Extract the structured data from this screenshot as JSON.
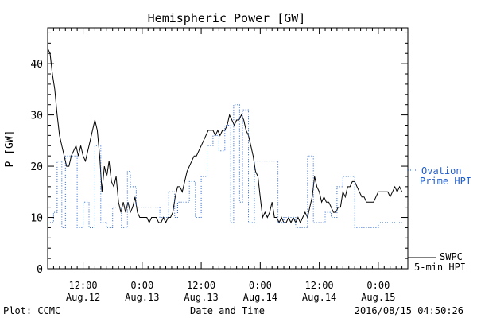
{
  "chart_data": {
    "type": "line",
    "title": "Hemispheric Power [GW]",
    "ylabel": "P [GW]",
    "xlabel": "Date and Time",
    "ylim": [
      0,
      47
    ],
    "xlim": [
      0,
      61
    ],
    "yticks": [
      0,
      10,
      20,
      30,
      40
    ],
    "xticks": [
      {
        "x": 6,
        "time": "12:00",
        "date": "Aug.12"
      },
      {
        "x": 16,
        "time": "0:00",
        "date": "Aug.13"
      },
      {
        "x": 26,
        "time": "12:00",
        "date": "Aug.13"
      },
      {
        "x": 36,
        "time": "0:00",
        "date": "Aug.14"
      },
      {
        "x": 46,
        "time": "12:00",
        "date": "Aug.14"
      },
      {
        "x": 56,
        "time": "0:00",
        "date": "Aug.15"
      }
    ],
    "grid": false,
    "series": [
      {
        "name": "SWPC 5-min HPI",
        "color": "#000000",
        "style": "solid",
        "points": [
          [
            0,
            43
          ],
          [
            0.4,
            42
          ],
          [
            0.8,
            38
          ],
          [
            1.2,
            35
          ],
          [
            1.6,
            30
          ],
          [
            2,
            26
          ],
          [
            2.4,
            24
          ],
          [
            2.8,
            22
          ],
          [
            3.2,
            20
          ],
          [
            3.6,
            20
          ],
          [
            4,
            22
          ],
          [
            4.4,
            23
          ],
          [
            4.8,
            24
          ],
          [
            5.2,
            22
          ],
          [
            5.6,
            24
          ],
          [
            6,
            22
          ],
          [
            6.4,
            21
          ],
          [
            6.8,
            23
          ],
          [
            7.2,
            25
          ],
          [
            7.6,
            27
          ],
          [
            8,
            29
          ],
          [
            8.4,
            27
          ],
          [
            8.8,
            22
          ],
          [
            9.2,
            15
          ],
          [
            9.6,
            20
          ],
          [
            10,
            18
          ],
          [
            10.4,
            21
          ],
          [
            10.8,
            17
          ],
          [
            11.2,
            16
          ],
          [
            11.6,
            18
          ],
          [
            12,
            13
          ],
          [
            12.4,
            11
          ],
          [
            12.8,
            13
          ],
          [
            13.2,
            11
          ],
          [
            13.6,
            13
          ],
          [
            14,
            11
          ],
          [
            14.4,
            12
          ],
          [
            14.8,
            14
          ],
          [
            15.2,
            11
          ],
          [
            15.6,
            10
          ],
          [
            16,
            10
          ],
          [
            16.4,
            10
          ],
          [
            16.8,
            10
          ],
          [
            17.2,
            9
          ],
          [
            17.6,
            10
          ],
          [
            18,
            10
          ],
          [
            18.4,
            10
          ],
          [
            18.8,
            9
          ],
          [
            19.2,
            9
          ],
          [
            19.6,
            10
          ],
          [
            20,
            9
          ],
          [
            20.4,
            10
          ],
          [
            20.8,
            10
          ],
          [
            21.2,
            11
          ],
          [
            21.6,
            14
          ],
          [
            22,
            16
          ],
          [
            22.4,
            16
          ],
          [
            22.8,
            15
          ],
          [
            23.2,
            17
          ],
          [
            23.6,
            19
          ],
          [
            24,
            20
          ],
          [
            24.4,
            21
          ],
          [
            24.8,
            22
          ],
          [
            25.2,
            22
          ],
          [
            25.6,
            23
          ],
          [
            26,
            24
          ],
          [
            26.4,
            25
          ],
          [
            26.8,
            26
          ],
          [
            27.2,
            27
          ],
          [
            27.6,
            27
          ],
          [
            28,
            27
          ],
          [
            28.4,
            26
          ],
          [
            28.8,
            27
          ],
          [
            29.2,
            26
          ],
          [
            29.6,
            27
          ],
          [
            30,
            27
          ],
          [
            30.4,
            28
          ],
          [
            30.8,
            30
          ],
          [
            31.2,
            29
          ],
          [
            31.6,
            28
          ],
          [
            32,
            29
          ],
          [
            32.4,
            29
          ],
          [
            32.8,
            30
          ],
          [
            33.2,
            29
          ],
          [
            33.6,
            27
          ],
          [
            34,
            26
          ],
          [
            34.4,
            24
          ],
          [
            34.8,
            22
          ],
          [
            35.2,
            19
          ],
          [
            35.6,
            18
          ],
          [
            36,
            14
          ],
          [
            36.4,
            10
          ],
          [
            36.8,
            11
          ],
          [
            37.2,
            10
          ],
          [
            37.6,
            11
          ],
          [
            38,
            13
          ],
          [
            38.4,
            10
          ],
          [
            38.8,
            10
          ],
          [
            39.2,
            9
          ],
          [
            39.6,
            10
          ],
          [
            40,
            9
          ],
          [
            40.4,
            9
          ],
          [
            40.8,
            10
          ],
          [
            41.2,
            9
          ],
          [
            41.6,
            10
          ],
          [
            42,
            9
          ],
          [
            42.4,
            10
          ],
          [
            42.8,
            9
          ],
          [
            43.2,
            10
          ],
          [
            43.6,
            11
          ],
          [
            44,
            10
          ],
          [
            44.4,
            12
          ],
          [
            44.8,
            14
          ],
          [
            45.2,
            18
          ],
          [
            45.6,
            16
          ],
          [
            46,
            15
          ],
          [
            46.4,
            13
          ],
          [
            46.8,
            14
          ],
          [
            47.2,
            13
          ],
          [
            47.6,
            13
          ],
          [
            48,
            12
          ],
          [
            48.4,
            11
          ],
          [
            48.8,
            11
          ],
          [
            49.2,
            12
          ],
          [
            49.6,
            12
          ],
          [
            50,
            15
          ],
          [
            50.4,
            14
          ],
          [
            50.8,
            16
          ],
          [
            51.2,
            16
          ],
          [
            51.6,
            17
          ],
          [
            52,
            17
          ],
          [
            52.4,
            16
          ],
          [
            52.8,
            15
          ],
          [
            53.2,
            14
          ],
          [
            53.6,
            14
          ],
          [
            54,
            13
          ],
          [
            54.4,
            13
          ],
          [
            54.8,
            13
          ],
          [
            55.2,
            13
          ],
          [
            55.6,
            14
          ],
          [
            56,
            15
          ],
          [
            56.4,
            15
          ],
          [
            56.8,
            15
          ],
          [
            57.2,
            15
          ],
          [
            57.6,
            15
          ],
          [
            58,
            14
          ],
          [
            58.4,
            15
          ],
          [
            58.8,
            16
          ],
          [
            59.2,
            15
          ],
          [
            59.6,
            16
          ],
          [
            60,
            15
          ]
        ]
      },
      {
        "name": "Ovation Prime HPI",
        "color": "#1f5fd0",
        "style": "dotted",
        "points": [
          [
            0,
            9
          ],
          [
            1,
            9
          ],
          [
            1,
            11
          ],
          [
            1.6,
            11
          ],
          [
            1.6,
            21
          ],
          [
            2.4,
            21
          ],
          [
            2.4,
            8
          ],
          [
            3,
            8
          ],
          [
            3,
            22
          ],
          [
            5,
            22
          ],
          [
            5,
            8
          ],
          [
            6,
            8
          ],
          [
            6,
            13
          ],
          [
            7,
            13
          ],
          [
            7,
            8
          ],
          [
            8,
            8
          ],
          [
            8,
            24
          ],
          [
            9,
            24
          ],
          [
            9,
            9
          ],
          [
            10,
            9
          ],
          [
            10,
            8
          ],
          [
            11,
            8
          ],
          [
            11,
            12
          ],
          [
            12.5,
            12
          ],
          [
            12.5,
            8
          ],
          [
            13.5,
            8
          ],
          [
            13.5,
            19
          ],
          [
            14,
            19
          ],
          [
            14,
            16
          ],
          [
            15,
            16
          ],
          [
            15,
            12
          ],
          [
            16,
            12
          ],
          [
            16,
            12
          ],
          [
            19,
            12
          ],
          [
            19,
            10
          ],
          [
            20.5,
            10
          ],
          [
            20.5,
            15
          ],
          [
            21.5,
            15
          ],
          [
            21.5,
            10
          ],
          [
            22,
            10
          ],
          [
            22,
            13
          ],
          [
            24,
            13
          ],
          [
            24,
            17
          ],
          [
            25,
            17
          ],
          [
            25,
            10
          ],
          [
            26,
            10
          ],
          [
            26,
            18
          ],
          [
            27,
            18
          ],
          [
            27,
            24
          ],
          [
            28,
            24
          ],
          [
            28,
            26
          ],
          [
            29,
            26
          ],
          [
            29,
            23
          ],
          [
            30,
            23
          ],
          [
            30,
            28
          ],
          [
            31,
            28
          ],
          [
            31,
            9
          ],
          [
            31.5,
            9
          ],
          [
            31.5,
            32
          ],
          [
            32.5,
            32
          ],
          [
            32.5,
            13
          ],
          [
            33,
            13
          ],
          [
            33,
            31
          ],
          [
            34,
            31
          ],
          [
            34,
            9
          ],
          [
            35,
            9
          ],
          [
            35,
            21
          ],
          [
            39,
            21
          ],
          [
            39,
            9
          ],
          [
            40,
            9
          ],
          [
            40,
            10
          ],
          [
            42,
            10
          ],
          [
            42,
            8
          ],
          [
            44,
            8
          ],
          [
            44,
            22
          ],
          [
            45,
            22
          ],
          [
            45,
            9
          ],
          [
            47,
            9
          ],
          [
            47,
            11
          ],
          [
            48,
            11
          ],
          [
            48,
            10
          ],
          [
            49,
            10
          ],
          [
            49,
            16
          ],
          [
            50,
            16
          ],
          [
            50,
            18
          ],
          [
            52,
            18
          ],
          [
            52,
            8
          ],
          [
            56,
            8
          ],
          [
            56,
            9
          ],
          [
            60,
            9
          ]
        ]
      }
    ],
    "annotations": [
      "Plot: CCMC",
      "2016/08/15 04:50:26"
    ],
    "legend": {
      "right_top": [
        "Ovation",
        "Prime HPI"
      ],
      "right_bottom": [
        "SWPC",
        "5-min HPI"
      ]
    }
  }
}
